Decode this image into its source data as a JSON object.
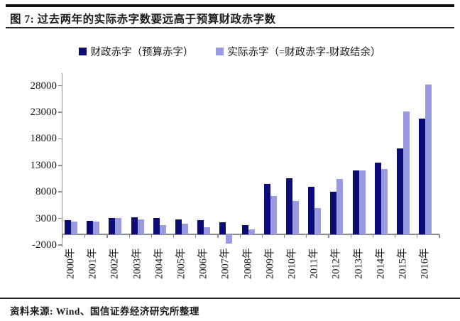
{
  "header": {
    "title": "图 7: 过去两年的实际赤字数要远高于预算财政赤字数"
  },
  "footer": {
    "source": "资料来源: Wind、国信证券经济研究所整理"
  },
  "colors": {
    "bar_budget": "#0c0c78",
    "bar_actual": "#989ae2",
    "axis": "#8c8c8c",
    "rule": "#111111"
  },
  "chart_data": {
    "type": "bar",
    "title": "图 7: 过去两年的实际赤字数要远高于预算财政赤字数",
    "xlabel": "",
    "ylabel": "",
    "ylim": [
      -2000,
      28000
    ],
    "yticks": [
      -2000,
      3000,
      8000,
      13000,
      18000,
      23000,
      28000
    ],
    "grid": false,
    "legend_position": "top",
    "categories": [
      "2000年",
      "2001年",
      "2002年",
      "2003年",
      "2004年",
      "2005年",
      "2006年",
      "2007年",
      "2008年",
      "2009年",
      "2010年",
      "2011年",
      "2012年",
      "2013年",
      "2014年",
      "2015年",
      "2016年"
    ],
    "series": [
      {
        "name": "财政赤字（预算赤字）",
        "color": "#0c0c78",
        "values": [
          2700,
          2600,
          3050,
          3150,
          3100,
          2750,
          2700,
          2300,
          1800,
          9500,
          10500,
          9000,
          8000,
          12000,
          13500,
          16200,
          21800
        ]
      },
      {
        "name": "实际赤字（=财政赤字-财政结余）",
        "color": "#989ae2",
        "values": [
          2400,
          2350,
          3050,
          2850,
          1800,
          1950,
          1300,
          -1700,
          1000,
          7200,
          6300,
          5000,
          10400,
          12000,
          12300,
          23100,
          28200
        ]
      }
    ]
  }
}
